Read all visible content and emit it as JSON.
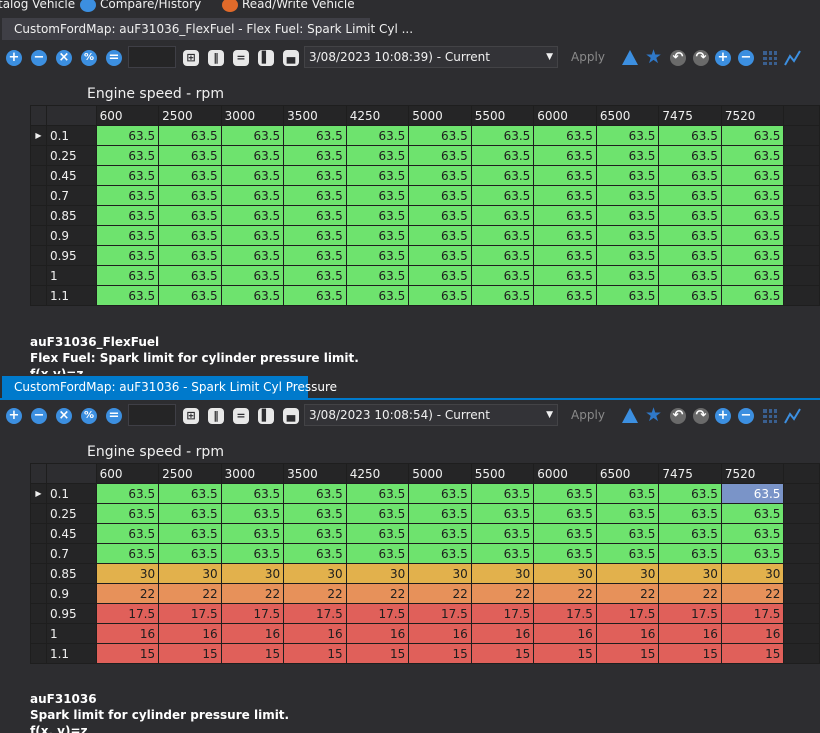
{
  "menu": {
    "items": [
      "talog Vehicle",
      "Compare/History",
      "Read/Write Vehicle"
    ]
  },
  "panel1": {
    "tab": "CustomFordMap: auF31036_FlexFuel - Flex Fuel: Spark Limit Cyl ...",
    "toolbar": {
      "date": "3/08/2023 10:08:39) - Current",
      "apply": "Apply"
    },
    "axis": "Engine speed - rpm",
    "columns": [
      "600",
      "2500",
      "3000",
      "3500",
      "4250",
      "5000",
      "5500",
      "6000",
      "6500",
      "7475",
      "7520"
    ],
    "rows": [
      "0.1",
      "0.25",
      "0.45",
      "0.7",
      "0.85",
      "0.9",
      "0.95",
      "1",
      "1.1"
    ],
    "values": [
      [
        "63.5",
        "63.5",
        "63.5",
        "63.5",
        "63.5",
        "63.5",
        "63.5",
        "63.5",
        "63.5",
        "63.5",
        "63.5"
      ],
      [
        "63.5",
        "63.5",
        "63.5",
        "63.5",
        "63.5",
        "63.5",
        "63.5",
        "63.5",
        "63.5",
        "63.5",
        "63.5"
      ],
      [
        "63.5",
        "63.5",
        "63.5",
        "63.5",
        "63.5",
        "63.5",
        "63.5",
        "63.5",
        "63.5",
        "63.5",
        "63.5"
      ],
      [
        "63.5",
        "63.5",
        "63.5",
        "63.5",
        "63.5",
        "63.5",
        "63.5",
        "63.5",
        "63.5",
        "63.5",
        "63.5"
      ],
      [
        "63.5",
        "63.5",
        "63.5",
        "63.5",
        "63.5",
        "63.5",
        "63.5",
        "63.5",
        "63.5",
        "63.5",
        "63.5"
      ],
      [
        "63.5",
        "63.5",
        "63.5",
        "63.5",
        "63.5",
        "63.5",
        "63.5",
        "63.5",
        "63.5",
        "63.5",
        "63.5"
      ],
      [
        "63.5",
        "63.5",
        "63.5",
        "63.5",
        "63.5",
        "63.5",
        "63.5",
        "63.5",
        "63.5",
        "63.5",
        "63.5"
      ],
      [
        "63.5",
        "63.5",
        "63.5",
        "63.5",
        "63.5",
        "63.5",
        "63.5",
        "63.5",
        "63.5",
        "63.5",
        "63.5"
      ],
      [
        "63.5",
        "63.5",
        "63.5",
        "63.5",
        "63.5",
        "63.5",
        "63.5",
        "63.5",
        "63.5",
        "63.5",
        "63.5"
      ]
    ],
    "desc": {
      "name": "auF31036_FlexFuel",
      "text": "Flex Fuel: Spark limit for cylinder pressure limit.",
      "formula": "f(x,y)=z"
    }
  },
  "panel2": {
    "tab": "CustomFordMap: auF31036 - Spark Limit Cyl Pressure",
    "toolbar": {
      "date": "3/08/2023 10:08:54) - Current",
      "apply": "Apply"
    },
    "axis": "Engine speed - rpm",
    "columns": [
      "600",
      "2500",
      "3000",
      "3500",
      "4250",
      "5000",
      "5500",
      "6000",
      "6500",
      "7475",
      "7520"
    ],
    "rows": [
      "0.1",
      "0.25",
      "0.45",
      "0.7",
      "0.85",
      "0.9",
      "0.95",
      "1",
      "1.1"
    ],
    "values": [
      [
        "63.5",
        "63.5",
        "63.5",
        "63.5",
        "63.5",
        "63.5",
        "63.5",
        "63.5",
        "63.5",
        "63.5",
        "63.5"
      ],
      [
        "63.5",
        "63.5",
        "63.5",
        "63.5",
        "63.5",
        "63.5",
        "63.5",
        "63.5",
        "63.5",
        "63.5",
        "63.5"
      ],
      [
        "63.5",
        "63.5",
        "63.5",
        "63.5",
        "63.5",
        "63.5",
        "63.5",
        "63.5",
        "63.5",
        "63.5",
        "63.5"
      ],
      [
        "63.5",
        "63.5",
        "63.5",
        "63.5",
        "63.5",
        "63.5",
        "63.5",
        "63.5",
        "63.5",
        "63.5",
        "63.5"
      ],
      [
        "30",
        "30",
        "30",
        "30",
        "30",
        "30",
        "30",
        "30",
        "30",
        "30",
        "30"
      ],
      [
        "22",
        "22",
        "22",
        "22",
        "22",
        "22",
        "22",
        "22",
        "22",
        "22",
        "22"
      ],
      [
        "17.5",
        "17.5",
        "17.5",
        "17.5",
        "17.5",
        "17.5",
        "17.5",
        "17.5",
        "17.5",
        "17.5",
        "17.5"
      ],
      [
        "16",
        "16",
        "16",
        "16",
        "16",
        "16",
        "16",
        "16",
        "16",
        "16",
        "16"
      ],
      [
        "15",
        "15",
        "15",
        "15",
        "15",
        "15",
        "15",
        "15",
        "15",
        "15",
        "15"
      ]
    ],
    "desc": {
      "name": "auF31036",
      "text": "Spark limit for cylinder pressure limit.",
      "formula": "f(x, y)=z"
    }
  },
  "colors": {
    "green": "#6ee36e",
    "amber": "#e2b14c",
    "orange": "#e7915a",
    "red": "#e0605a",
    "selected": "#7a94c8",
    "accent": "#007acc"
  }
}
